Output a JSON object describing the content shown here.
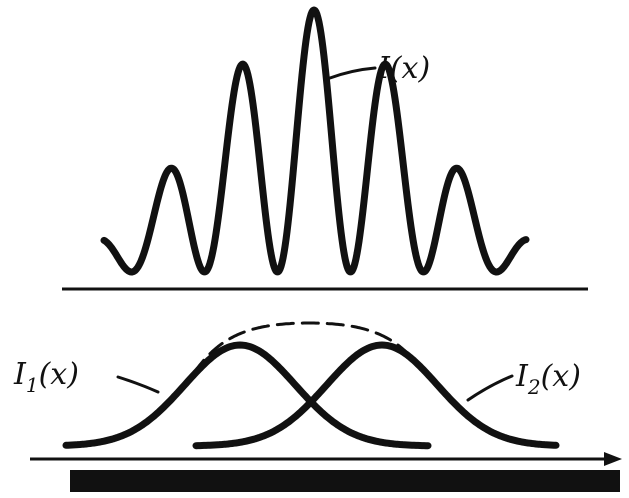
{
  "diagram": {
    "labels": {
      "interference": "I(x)",
      "source1_base": "I",
      "source1_sub": "1",
      "source1_arg": "(x)",
      "source2_base": "I",
      "source2_sub": "2",
      "source2_arg": "(x)"
    },
    "colors": {
      "ink": "#111111",
      "background": "#ffffff"
    }
  }
}
